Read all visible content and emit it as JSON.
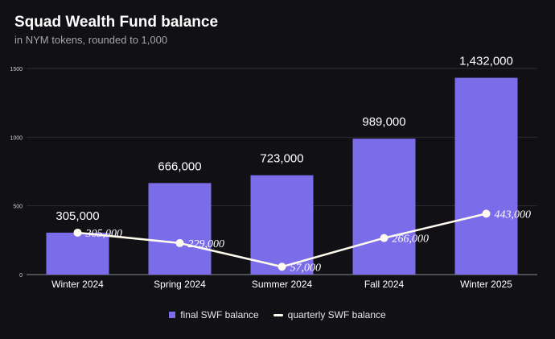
{
  "chart_data": {
    "type": "bar",
    "title": "Squad Wealth Fund balance",
    "subtitle": "in NYM tokens, rounded to 1,000",
    "categories": [
      "Winter 2024",
      "Spring 2024",
      "Summer 2024",
      "Fall 2024",
      "Winter 2025"
    ],
    "y_ticks": [
      "0",
      "500",
      "1000",
      "1500"
    ],
    "ylim": [
      0,
      1500
    ],
    "grid": true,
    "legend_position": "bottom",
    "series": [
      {
        "name": "final SWF balance",
        "type": "bar",
        "values": [
          305,
          666,
          723,
          989,
          1432
        ],
        "labels": [
          "305,000",
          "666,000",
          "723,000",
          "989,000",
          "1,432,000"
        ],
        "color": "#7b6cea"
      },
      {
        "name": "quarterly SWF balance",
        "type": "line",
        "values": [
          305,
          229,
          57,
          266,
          443
        ],
        "labels": [
          "305,000",
          "229,000",
          "57,000",
          "266,000",
          "443,000"
        ],
        "color": "#fffbef"
      }
    ]
  }
}
